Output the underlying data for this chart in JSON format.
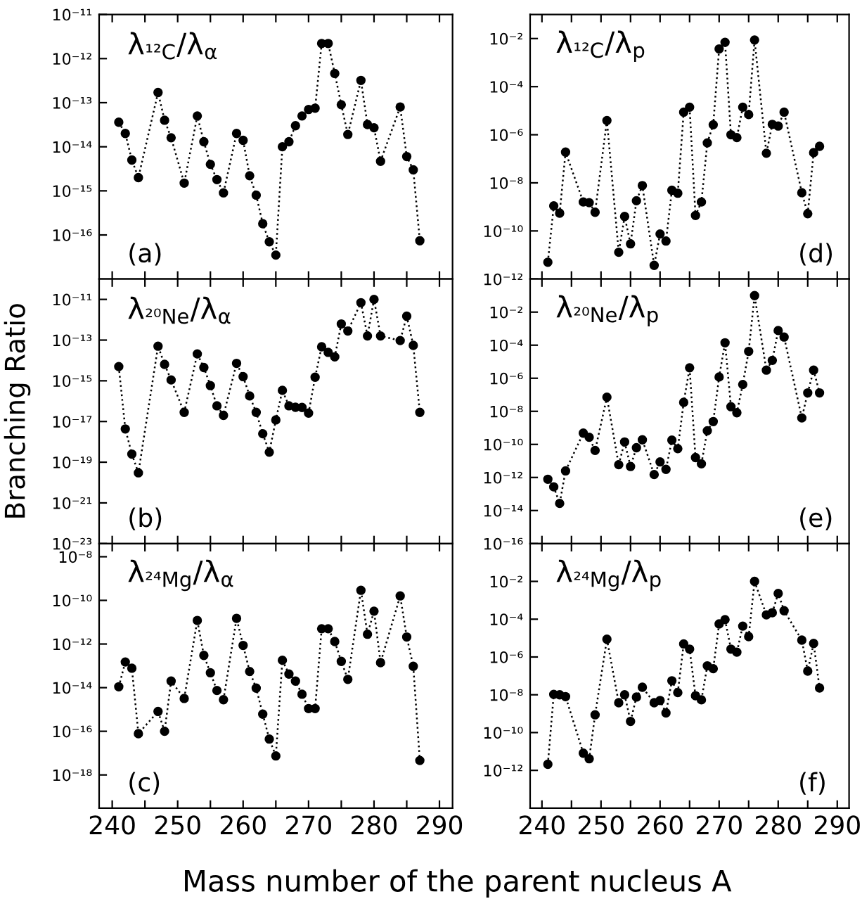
{
  "chart_data": [
    {
      "type": "line",
      "title": "λ$_{¹²C}$/λ$_{α}$",
      "annotations": [
        "(a)"
      ],
      "marker": "circle",
      "line_style": "dotted",
      "log": "y",
      "tick_labels": "y",
      "x": [
        241,
        242,
        243,
        244,
        247,
        248,
        249,
        251,
        253,
        254,
        255,
        256,
        257,
        259,
        260,
        261,
        262,
        263,
        264,
        265,
        266,
        267,
        268,
        269,
        270,
        271,
        272,
        273,
        274,
        275,
        276,
        278,
        279,
        280,
        281,
        284,
        285,
        286,
        287
      ],
      "series": [
        {
          "color": "#000000",
          "values": [
            3.6e-14,
            2e-14,
            5e-15,
            2e-15,
            1.7e-13,
            4e-14,
            1.6e-14,
            1.5e-15,
            5e-14,
            1.3e-14,
            4e-15,
            1.8e-15,
            9e-16,
            2e-14,
            1.4e-14,
            2.2e-15,
            8e-16,
            1.8e-16,
            7e-17,
            3.5e-17,
            1e-14,
            1.3e-14,
            3e-14,
            5e-14,
            7e-14,
            7.5e-14,
            2.2e-12,
            2.2e-12,
            4.6e-13,
            9e-14,
            1.9e-14,
            3.2e-13,
            3.2e-14,
            2.7e-14,
            4.7e-15,
            8e-14,
            6e-15,
            3e-15,
            7.4e-17
          ]
        }
      ],
      "xlim": [
        238,
        292
      ],
      "xticks": [
        240,
        {
          "value": 245,
          "label": null
        },
        250,
        {
          "value": 255,
          "label": null
        },
        260,
        {
          "value": 265,
          "label": null
        },
        270,
        {
          "value": 275,
          "label": null
        },
        280,
        {
          "value": 285,
          "label": null
        },
        290
      ],
      "ylim": [
        1e-17,
        1e-11
      ],
      "yticks": [
        {
          "value": 1e-16,
          "label": "10⁻¹⁶"
        },
        {
          "value": 1e-15,
          "label": "10⁻¹⁵"
        },
        {
          "value": 1e-14,
          "label": "10⁻¹⁴"
        },
        {
          "value": 1e-13,
          "label": "10⁻¹³"
        },
        {
          "value": 1e-12,
          "label": "10⁻¹²"
        },
        {
          "value": 1e-11,
          "label": "10⁻¹¹"
        }
      ]
    },
    {
      "type": "line",
      "title": "λ$_{²⁰Ne}$/λ$_{α}$",
      "ylabel": "Branching Ratio",
      "annotations": [
        "(b)"
      ],
      "marker": "circle",
      "line_style": "dotted",
      "log": "y",
      "tick_labels": "y",
      "x": [
        241,
        242,
        243,
        244,
        247,
        248,
        249,
        251,
        253,
        254,
        255,
        256,
        257,
        259,
        260,
        261,
        262,
        263,
        264,
        265,
        266,
        267,
        268,
        269,
        270,
        271,
        272,
        273,
        274,
        275,
        276,
        278,
        279,
        280,
        281,
        284,
        285,
        286,
        287
      ],
      "series": [
        {
          "color": "#000000",
          "values": [
            5e-15,
            4.3e-18,
            2.5e-19,
            3e-20,
            5e-14,
            6.4e-15,
            1.1e-15,
            2.8e-17,
            2.1e-14,
            4.5e-15,
            5.8e-16,
            5.9e-17,
            2e-17,
            7.2e-15,
            1.6e-15,
            1.8e-16,
            2.8e-17,
            2.5e-18,
            3.1e-19,
            1.2e-17,
            3.4e-16,
            5.9e-17,
            5e-17,
            4.9e-17,
            2.6e-17,
            1.5e-15,
            4.7e-14,
            2.5e-14,
            1.5e-14,
            6.2e-13,
            2.8e-13,
            6.9e-12,
            1.6e-13,
            1e-11,
            1.6e-13,
            9.5e-14,
            1.5e-12,
            5.5e-14,
            2.8e-17
          ]
        }
      ],
      "xlim": [
        238,
        292
      ],
      "xticks": [
        240,
        {
          "value": 245,
          "label": null
        },
        250,
        {
          "value": 255,
          "label": null
        },
        260,
        {
          "value": 265,
          "label": null
        },
        270,
        {
          "value": 275,
          "label": null
        },
        280,
        {
          "value": 285,
          "label": null
        },
        290
      ],
      "ylim": [
        1e-23,
        1e-10
      ],
      "yticks": [
        {
          "value": 1e-23,
          "label": "10⁻²³"
        },
        {
          "value": 1e-21,
          "label": "10⁻²¹"
        },
        {
          "value": 1e-19,
          "label": "10⁻¹⁹"
        },
        {
          "value": 1e-17,
          "label": "10⁻¹⁷"
        },
        {
          "value": 1e-15,
          "label": "10⁻¹⁵"
        },
        {
          "value": 1e-13,
          "label": "10⁻¹³"
        },
        {
          "value": 1e-11,
          "label": "10⁻¹¹"
        }
      ]
    },
    {
      "type": "line",
      "title": "λ$_{²⁴Mg}$/λ$_{α}$",
      "xlabel": "Mass number of the parent nucleus A",
      "annotations": [
        "(c)"
      ],
      "marker": "circle",
      "line_style": "dotted",
      "log": "y",
      "x": [
        241,
        242,
        243,
        244,
        247,
        248,
        249,
        251,
        253,
        254,
        255,
        256,
        257,
        259,
        260,
        261,
        262,
        263,
        264,
        265,
        266,
        267,
        268,
        269,
        270,
        271,
        272,
        273,
        274,
        275,
        276,
        278,
        279,
        280,
        281,
        284,
        285,
        286,
        287
      ],
      "series": [
        {
          "color": "#000000",
          "values": [
            1.1e-14,
            1.5e-13,
            7.8e-14,
            7.8e-17,
            8.1e-16,
            1e-16,
            2e-14,
            3.2e-15,
            1.2e-11,
            3e-13,
            4.8e-14,
            7.4e-15,
            2.8e-15,
            1.5e-11,
            8.6e-13,
            5.5e-14,
            9.5e-15,
            6.1e-16,
            4.4e-17,
            7.4e-18,
            1.8e-13,
            4.2e-14,
            2e-14,
            5e-15,
            1.1e-15,
            1.1e-15,
            5e-12,
            5e-12,
            1.3e-12,
            1.6e-13,
            2.4e-14,
            2.9e-10,
            2.8e-12,
            3.2e-11,
            1.4e-13,
            1.6e-10,
            2.1e-12,
            9.5e-14,
            4.6e-18
          ]
        }
      ],
      "xlim": [
        238,
        292
      ],
      "xticks": [
        240,
        {
          "value": 245,
          "label": null
        },
        250,
        {
          "value": 255,
          "label": null
        },
        260,
        {
          "value": 265,
          "label": null
        },
        270,
        {
          "value": 275,
          "label": null
        },
        280,
        {
          "value": 285,
          "label": null
        },
        290
      ],
      "ylim": [
        3e-20,
        4e-08
      ],
      "yticks": [
        {
          "value": 1e-18,
          "label": "10⁻¹⁸"
        },
        {
          "value": 1e-16,
          "label": "10⁻¹⁶"
        },
        {
          "value": 1e-14,
          "label": "10⁻¹⁴"
        },
        {
          "value": 1e-12,
          "label": "10⁻¹²"
        },
        {
          "value": 1e-10,
          "label": "10⁻¹⁰"
        },
        {
          "value": 1e-08,
          "label": "10⁻⁸"
        }
      ]
    },
    {
      "type": "line",
      "title": "λ$_{¹²C}$/λ$_{p}$",
      "annotations": [
        "(d)"
      ],
      "marker": "circle",
      "line_style": "dotted",
      "log": "y",
      "tick_labels": "y",
      "x": [
        241,
        242,
        243,
        244,
        247,
        248,
        249,
        251,
        253,
        254,
        255,
        256,
        257,
        259,
        260,
        261,
        262,
        263,
        264,
        265,
        266,
        267,
        268,
        269,
        270,
        271,
        272,
        273,
        274,
        275,
        276,
        278,
        279,
        280,
        281,
        284,
        285,
        286,
        287
      ],
      "series": [
        {
          "color": "#000000",
          "values": [
            5e-12,
            1.1e-09,
            5.5e-10,
            1.9e-07,
            1.6e-09,
            1.5e-09,
            6e-10,
            3.9e-06,
            1.3e-11,
            4e-10,
            2.9e-11,
            1.8e-09,
            7.7e-09,
            3.7e-12,
            7.5e-11,
            3.8e-11,
            4.9e-09,
            3.7e-09,
            8.7e-06,
            1.4e-05,
            4.4e-10,
            1.6e-09,
            4.6e-07,
            2.6e-06,
            0.0037,
            0.007,
            1e-06,
            7.6e-07,
            1.4e-05,
            6.9e-06,
            0.0087,
            1.7e-07,
            2.7e-06,
            2.3e-06,
            8.7e-06,
            3.9e-09,
            5.2e-10,
            1.8e-07,
            3.3e-07
          ]
        }
      ],
      "xlim": [
        238,
        292
      ],
      "xticks": [
        240,
        {
          "value": 245,
          "label": null
        },
        250,
        {
          "value": 255,
          "label": null
        },
        260,
        {
          "value": 265,
          "label": null
        },
        270,
        {
          "value": 275,
          "label": null
        },
        280,
        {
          "value": 285,
          "label": null
        },
        290
      ],
      "ylim": [
        1e-12,
        0.1
      ],
      "yticks": [
        {
          "value": 1e-12,
          "label": "10⁻¹²"
        },
        {
          "value": 1e-10,
          "label": "10⁻¹⁰"
        },
        {
          "value": 1e-08,
          "label": "10⁻⁸"
        },
        {
          "value": 1e-06,
          "label": "10⁻⁶"
        },
        {
          "value": 0.0001,
          "label": "10⁻⁴"
        },
        {
          "value": 0.01,
          "label": "10⁻²"
        }
      ]
    },
    {
      "type": "line",
      "title": "λ$_{²⁰Ne}$/λ$_{p}$",
      "annotations": [
        "(e)"
      ],
      "marker": "circle",
      "line_style": "dotted",
      "log": "y",
      "tick_labels": "y",
      "x": [
        241,
        242,
        243,
        244,
        247,
        248,
        249,
        251,
        253,
        254,
        255,
        256,
        257,
        259,
        260,
        261,
        262,
        263,
        264,
        265,
        266,
        267,
        268,
        269,
        270,
        271,
        272,
        273,
        274,
        275,
        276,
        278,
        279,
        280,
        281,
        284,
        285,
        286,
        287
      ],
      "series": [
        {
          "color": "#000000",
          "values": [
            7.8e-13,
            2.7e-13,
            2.7e-14,
            2.5e-12,
            4.8e-10,
            2.7e-10,
            4.3e-11,
            7.2e-08,
            5.9e-12,
            1.4e-10,
            4.6e-12,
            6.3e-11,
            1.9e-10,
            1.5e-12,
            8.7e-12,
            3.1e-12,
            1.8e-10,
            5.5e-11,
            3.5e-08,
            4.3e-06,
            1.6e-11,
            6.7e-12,
            6.7e-10,
            2.4e-09,
            1.2e-06,
            0.00014,
            1.9e-08,
            8.2e-09,
            4.2e-07,
            4.2e-05,
            0.1,
            3.1e-06,
            1.2e-05,
            0.00077,
            0.00031,
            4e-09,
            1.3e-07,
            3.1e-06,
            1.3e-07
          ]
        }
      ],
      "xlim": [
        238,
        292
      ],
      "xticks": [
        240,
        {
          "value": 245,
          "label": null
        },
        250,
        {
          "value": 255,
          "label": null
        },
        260,
        {
          "value": 265,
          "label": null
        },
        270,
        {
          "value": 275,
          "label": null
        },
        280,
        {
          "value": 285,
          "label": null
        },
        290
      ],
      "ylim": [
        1e-16,
        1
      ],
      "yticks": [
        {
          "value": 1e-16,
          "label": "10⁻¹⁶"
        },
        {
          "value": 1e-14,
          "label": "10⁻¹⁴"
        },
        {
          "value": 1e-12,
          "label": "10⁻¹²"
        },
        {
          "value": 1e-10,
          "label": "10⁻¹⁰"
        },
        {
          "value": 1e-08,
          "label": "10⁻⁸"
        },
        {
          "value": 1e-06,
          "label": "10⁻⁶"
        },
        {
          "value": 0.0001,
          "label": "10⁻⁴"
        },
        {
          "value": 0.01,
          "label": "10⁻²"
        }
      ]
    },
    {
      "type": "line",
      "title": "λ$_{²⁴Mg}$/λ$_{p}$",
      "annotations": [
        "(f)"
      ],
      "marker": "circle",
      "line_style": "dotted",
      "log": "y",
      "x": [
        241,
        242,
        243,
        244,
        247,
        248,
        249,
        251,
        253,
        254,
        255,
        256,
        257,
        259,
        260,
        261,
        262,
        263,
        264,
        265,
        266,
        267,
        268,
        269,
        270,
        271,
        272,
        273,
        274,
        275,
        276,
        278,
        279,
        280,
        281,
        284,
        285,
        286,
        287
      ],
      "series": [
        {
          "color": "#000000",
          "values": [
            2.1e-12,
            1.05e-08,
            1e-08,
            8e-09,
            8.1e-12,
            4.1e-12,
            8.7e-10,
            8.7e-06,
            3.8e-09,
            1e-08,
            3.9e-10,
            7.6e-09,
            2.5e-08,
            3.8e-09,
            5e-09,
            1.1e-09,
            5.5e-08,
            1.3e-08,
            4.9e-06,
            2.6e-06,
            8.9e-09,
            5.4e-09,
            3.4e-07,
            2.4e-07,
            5.6e-05,
            9.5e-05,
            2.6e-06,
            1.8e-06,
            4.3e-05,
            1.2e-05,
            0.01,
            0.00017,
            0.00022,
            0.0023,
            0.00028,
            7.8e-06,
            1.8e-07,
            5.2e-06,
            2.3e-08
          ]
        }
      ],
      "xlim": [
        238,
        292
      ],
      "xticks": [
        240,
        {
          "value": 245,
          "label": null
        },
        250,
        {
          "value": 255,
          "label": null
        },
        260,
        {
          "value": 265,
          "label": null
        },
        270,
        {
          "value": 275,
          "label": null
        },
        280,
        {
          "value": 285,
          "label": null
        },
        290
      ],
      "ylim": [
        1e-14,
        1
      ],
      "yticks": [
        {
          "value": 1e-12,
          "label": "10⁻¹²"
        },
        {
          "value": 1e-10,
          "label": "10⁻¹⁰"
        },
        {
          "value": 1e-08,
          "label": "10⁻⁸"
        },
        {
          "value": 1e-06,
          "label": "10⁻⁶"
        },
        {
          "value": 0.0001,
          "label": "10⁻⁴"
        },
        {
          "value": 0.01,
          "label": "10⁻²"
        }
      ]
    }
  ]
}
